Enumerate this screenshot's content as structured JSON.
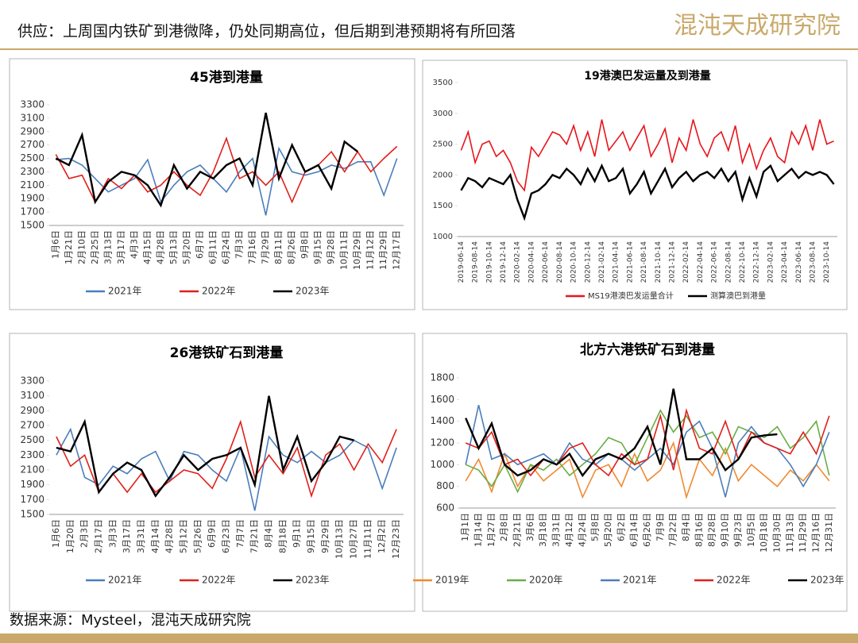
{
  "header": {
    "title": "供应：上周国内铁矿到港微降，仍处同期高位，但后期到港预期将有所回落",
    "logo": "混沌天成研究院"
  },
  "source": "数据来源：Mysteel，混沌天成研究院",
  "chart_data": [
    {
      "type": "line",
      "title": "45港到港量",
      "categories": [
        "1月6日",
        "1月21日",
        "2月10日",
        "2月25日",
        "3月13日",
        "3月17日",
        "4月3日",
        "4月15日",
        "4月28日",
        "5月13日",
        "5月20日",
        "6月7日",
        "6月11日",
        "6月24日",
        "7月3日",
        "7月16日",
        "7月29日",
        "8月11日",
        "8月26日",
        "9月8日",
        "9月15日",
        "9月28日",
        "10月11日",
        "10月29日",
        "11月12日",
        "11月29日",
        "12月17日"
      ],
      "ylim": [
        1500,
        3300
      ],
      "yticks": [
        1500,
        1700,
        1900,
        2100,
        2300,
        2500,
        2700,
        2900,
        3100,
        3300
      ],
      "series": [
        {
          "name": "2021年",
          "color": "#4a7ebb",
          "values": [
            2480,
            2500,
            2400,
            2200,
            2000,
            2100,
            2200,
            2480,
            1850,
            2100,
            2300,
            2400,
            2200,
            2000,
            2300,
            2500,
            1650,
            2650,
            2300,
            2250,
            2300,
            2400,
            2350,
            2450,
            2450,
            1950,
            2500
          ]
        },
        {
          "name": "2022年",
          "color": "#e0201b",
          "values": [
            2560,
            2200,
            2250,
            1850,
            2200,
            2050,
            2250,
            2000,
            2100,
            2300,
            2100,
            1950,
            2300,
            2800,
            2200,
            2300,
            2100,
            2300,
            1850,
            2300,
            2400,
            2600,
            2300,
            2600,
            2300,
            2500,
            2680
          ]
        },
        {
          "name": "2023年",
          "color": "#000000",
          "values": [
            2500,
            2400,
            2850,
            1850,
            2150,
            2300,
            2250,
            2100,
            1800,
            2400,
            2050,
            2300,
            2200,
            2400,
            2500,
            2100,
            3180,
            2200,
            2700,
            2300,
            2400,
            2050,
            2750,
            2600,
            null,
            null,
            null
          ]
        }
      ]
    },
    {
      "type": "line",
      "title": "19港澳巴发运量及到港量",
      "categories": [
        "2019-06-14",
        null,
        "2019-08-14",
        null,
        "2019-10-14",
        null,
        "2019-12-14",
        null,
        "2020-02-14",
        null,
        "2020-04-14",
        null,
        "2020-06-14",
        null,
        "2020-08-14",
        null,
        "2020-10-14",
        null,
        "2020-12-14",
        null,
        "2021-02-14",
        null,
        "2021-04-14",
        null,
        "2021-06-14",
        null,
        "2021-08-14",
        null,
        "2021-10-14",
        null,
        "2021-12-14",
        null,
        "2022-02-14",
        null,
        "2022-04-14",
        null,
        "2022-06-14",
        null,
        "2022-08-14",
        null,
        "2022-10-14",
        null,
        "2022-12-14",
        null,
        "2023-02-14",
        null,
        "2023-04-14",
        null,
        "2023-06-14",
        null,
        "2023-08-14",
        null,
        "2023-10-14",
        null
      ],
      "ylim": [
        1000,
        3500
      ],
      "yticks": [
        1000,
        1500,
        2000,
        2500,
        3000,
        3500
      ],
      "series": [
        {
          "name": "MS19港澳巴发运量合计",
          "color": "#e8141a",
          "values": [
            2400,
            2700,
            2200,
            2500,
            2550,
            2300,
            2400,
            2200,
            1900,
            1750,
            2450,
            2300,
            2500,
            2700,
            2650,
            2500,
            2800,
            2400,
            2700,
            2300,
            2900,
            2400,
            2550,
            2700,
            2400,
            2600,
            2800,
            2300,
            2500,
            2750,
            2200,
            2600,
            2400,
            2900,
            2500,
            2300,
            2600,
            2700,
            2400,
            2800,
            2200,
            2500,
            2100,
            2400,
            2600,
            2300,
            2200,
            2700,
            2500,
            2800,
            2400,
            2900,
            2500,
            2550
          ]
        },
        {
          "name": "测算澳巴到港量",
          "color": "#000000",
          "values": [
            1750,
            1950,
            1900,
            1800,
            1950,
            1900,
            1850,
            2000,
            1600,
            1300,
            1700,
            1750,
            1850,
            2000,
            1950,
            2100,
            2000,
            1850,
            2100,
            1900,
            2150,
            1900,
            1950,
            2100,
            1700,
            1850,
            2050,
            1700,
            1900,
            2100,
            1800,
            1950,
            2050,
            1900,
            2000,
            2050,
            1950,
            2100,
            1900,
            2050,
            1600,
            1950,
            1650,
            2050,
            2150,
            1900,
            2000,
            2100,
            1950,
            2050,
            2000,
            2050,
            2000,
            1850
          ]
        }
      ]
    },
    {
      "type": "line",
      "title": "26港铁矿石到港量",
      "categories": [
        "1月6日",
        "1月20日",
        "2月3日",
        "2月17日",
        "3月3日",
        "3月17日",
        "3月31日",
        "4月14日",
        "4月28日",
        "5月12日",
        "5月26日",
        "6月9日",
        "6月23日",
        "7月7日",
        "7月21日",
        "8月4日",
        "8月18日",
        "9月1日",
        "9月15日",
        "9月29日",
        "10月13日",
        "10月27日",
        "11月11日",
        "12月2日",
        "12月23日"
      ],
      "ylim": [
        1500,
        3300
      ],
      "yticks": [
        1500,
        1700,
        1900,
        2100,
        2300,
        2500,
        2700,
        2900,
        3100,
        3300
      ],
      "series": [
        {
          "name": "2021年",
          "color": "#4a7ebb",
          "values": [
            2300,
            2650,
            2000,
            1900,
            2150,
            2050,
            2250,
            2350,
            1950,
            2350,
            2300,
            2100,
            1950,
            2400,
            1550,
            2550,
            2300,
            2200,
            2350,
            2200,
            2300,
            2500,
            2400,
            1850,
            2400
          ]
        },
        {
          "name": "2022年",
          "color": "#e0201b",
          "values": [
            2550,
            2150,
            2300,
            1800,
            2050,
            1800,
            2050,
            1800,
            1950,
            2100,
            2050,
            1850,
            2250,
            2750,
            2000,
            2300,
            2050,
            2400,
            1750,
            2300,
            2450,
            2100,
            2450,
            2200,
            2650
          ]
        },
        {
          "name": "2023年",
          "color": "#000000",
          "values": [
            2400,
            2350,
            2750,
            1800,
            2050,
            2200,
            2100,
            1750,
            2000,
            2300,
            2100,
            2250,
            2300,
            2400,
            1900,
            3100,
            2100,
            2550,
            1950,
            2200,
            2550,
            2500,
            null,
            null,
            null
          ]
        }
      ]
    },
    {
      "type": "line",
      "title": "北方六港铁矿石到港量",
      "categories": [
        "1月1日",
        "1月14日",
        "1月27日",
        "2月8日",
        "2月21日",
        "3月6日",
        "3月18日",
        "3月31日",
        "4月12日",
        "4月24日",
        "5月8日",
        "5月20日",
        "6月2日",
        "6月14日",
        "6月26日",
        "7月9日",
        "7月22日",
        "8月4日",
        "8月16日",
        "8月28日",
        "9月10日",
        "9月23日",
        "10月5日",
        "10月18日",
        "10月30日",
        "11月13日",
        "11月29日",
        "12月16日",
        "12月31日"
      ],
      "ylim": [
        600,
        1800
      ],
      "yticks": [
        600,
        800,
        1000,
        1200,
        1400,
        1600,
        1800
      ],
      "series": [
        {
          "name": "2019年",
          "color": "#f08a30",
          "values": [
            850,
            1050,
            750,
            1100,
            800,
            1000,
            850,
            950,
            1050,
            700,
            950,
            1000,
            800,
            1100,
            850,
            950,
            1200,
            700,
            1050,
            900,
            1150,
            850,
            1000,
            900,
            800,
            950,
            850,
            1000,
            850
          ]
        },
        {
          "name": "2020年",
          "color": "#6aad45",
          "values": [
            1000,
            950,
            800,
            1000,
            750,
            1000,
            950,
            1050,
            900,
            1000,
            1100,
            1250,
            1200,
            1000,
            1250,
            1500,
            1300,
            1450,
            1250,
            1300,
            1100,
            1350,
            1300,
            1250,
            1350,
            1150,
            1250,
            1400,
            900
          ]
        },
        {
          "name": "2021年",
          "color": "#4a7ebb",
          "values": [
            1000,
            1550,
            1050,
            1100,
            1000,
            1050,
            1100,
            1000,
            1200,
            1050,
            1000,
            1100,
            1050,
            950,
            1050,
            1150,
            1000,
            1300,
            1400,
            1150,
            700,
            1200,
            1350,
            1200,
            1150,
            1000,
            800,
            1000,
            1300
          ]
        },
        {
          "name": "2022年",
          "color": "#e0201b",
          "values": [
            1200,
            1150,
            1300,
            1000,
            1050,
            900,
            1050,
            1000,
            1150,
            1200,
            1000,
            900,
            1100,
            1000,
            1050,
            1450,
            950,
            1500,
            1150,
            1100,
            1400,
            1050,
            1300,
            1200,
            1150,
            1100,
            1300,
            1100,
            1450
          ]
        },
        {
          "name": "2023年",
          "color": "#000000",
          "values": [
            1430,
            1150,
            1380,
            1000,
            900,
            950,
            1050,
            1000,
            1100,
            900,
            1050,
            1100,
            1050,
            1150,
            1350,
            1000,
            1700,
            1050,
            1050,
            1150,
            950,
            1050,
            1250,
            1270,
            1280,
            null,
            null,
            null,
            null
          ]
        }
      ]
    }
  ]
}
